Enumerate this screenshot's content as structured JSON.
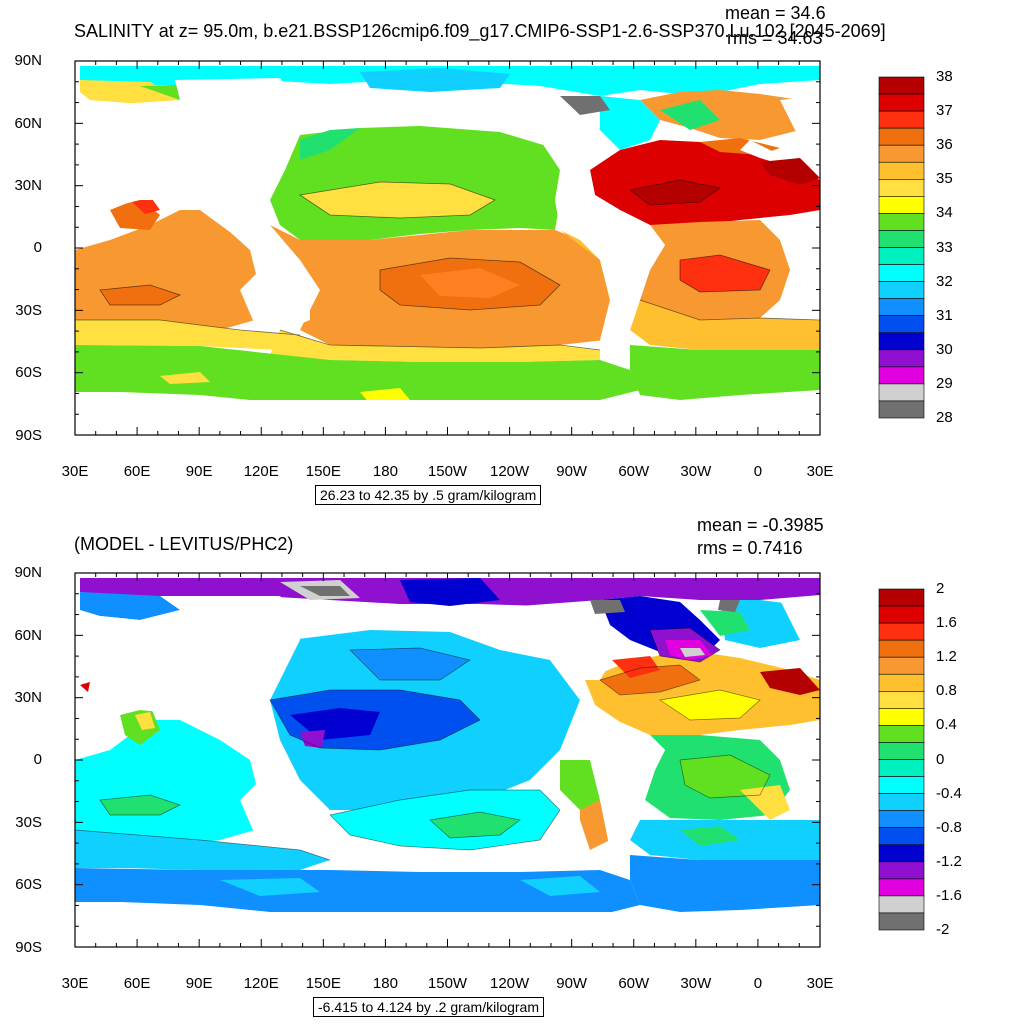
{
  "top_panel": {
    "title": "SALINITY at z=  95.0m, b.e21.BSSP126cmip6.f09_g17.CMIP6-SSP1-2.6-SSP370.Lu.102 [2045-2069]",
    "mean_text": "mean = 34.6",
    "rms_text": "rms = 34.63",
    "range_text": "26.23 to 42.35 by .5 gram/kilogram",
    "colorbar_labels": [
      "38",
      "37",
      "36",
      "35",
      "34",
      "33",
      "32",
      "31",
      "30",
      "29",
      "28"
    ],
    "colorbar_colors": [
      "#b40000",
      "#dc0000",
      "#ff3010",
      "#f07010",
      "#f89830",
      "#ffc030",
      "#ffe040",
      "#ffff00",
      "#60e020",
      "#20e070",
      "#00f0c0",
      "#00ffff",
      "#10d0ff",
      "#1090ff",
      "#0050f0",
      "#0000d0",
      "#9010d0",
      "#e000e0",
      "#d0d0d0",
      "#707070"
    ]
  },
  "bottom_panel": {
    "title": "(MODEL - LEVITUS/PHC2)",
    "mean_text": "mean = -0.3985",
    "rms_text": "rms = 0.7416",
    "range_text": "-6.415 to 4.124 by .2 gram/kilogram",
    "colorbar_labels": [
      "2",
      "1.6",
      "1.2",
      "0.8",
      "0.4",
      "0",
      "-0.4",
      "-0.8",
      "-1.2",
      "-1.6",
      "-2"
    ],
    "colorbar_colors": [
      "#b40000",
      "#dc0000",
      "#ff3010",
      "#f07010",
      "#f89830",
      "#ffc030",
      "#ffe040",
      "#ffff00",
      "#60e020",
      "#20e070",
      "#00f0c0",
      "#00ffff",
      "#10d0ff",
      "#1090ff",
      "#0050f0",
      "#0000d0",
      "#9010d0",
      "#e000e0",
      "#d0d0d0",
      "#707070"
    ]
  },
  "axes": {
    "lat_labels": [
      "90N",
      "60N",
      "30N",
      "0",
      "30S",
      "60S",
      "90S"
    ],
    "lon_labels": [
      "30E",
      "60E",
      "90E",
      "120E",
      "150E",
      "180",
      "150W",
      "120W",
      "90W",
      "60W",
      "30W",
      "0",
      "30E"
    ]
  }
}
